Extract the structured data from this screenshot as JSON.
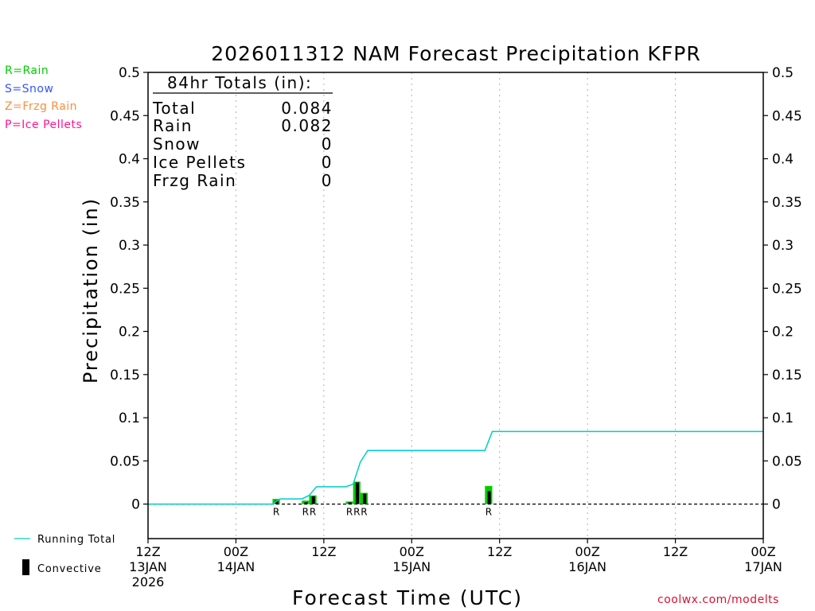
{
  "chart_data": {
    "type": "bar",
    "title": "2026011312 NAM Forecast Precipitation KFPR",
    "xlabel": "Forecast Time (UTC)",
    "ylabel": "Precipitation (in)",
    "ylim": [
      -0.04,
      0.5
    ],
    "xlim_hours": [
      0,
      84
    ],
    "yticks": [
      "0",
      "0.05",
      "0.1",
      "0.15",
      "0.2",
      "0.25",
      "0.3",
      "0.35",
      "0.4",
      "0.45",
      "0.5"
    ],
    "ytick_values": [
      0,
      0.05,
      0.1,
      0.15,
      0.2,
      0.25,
      0.3,
      0.35,
      0.4,
      0.45,
      0.5
    ],
    "xticks": [
      {
        "hour": 0,
        "line1": "12Z",
        "line2": "13JAN",
        "line3": "2026"
      },
      {
        "hour": 12,
        "line1": "00Z",
        "line2": "14JAN",
        "line3": ""
      },
      {
        "hour": 24,
        "line1": "12Z",
        "line2": "",
        "line3": ""
      },
      {
        "hour": 36,
        "line1": "00Z",
        "line2": "15JAN",
        "line3": ""
      },
      {
        "hour": 48,
        "line1": "12Z",
        "line2": "",
        "line3": ""
      },
      {
        "hour": 60,
        "line1": "00Z",
        "line2": "16JAN",
        "line3": ""
      },
      {
        "hour": 72,
        "line1": "12Z",
        "line2": "",
        "line3": ""
      },
      {
        "hour": 84,
        "line1": "00Z",
        "line2": "17JAN",
        "line3": ""
      }
    ],
    "grid_vertical_hours": [
      12,
      24,
      36,
      48,
      60,
      72
    ],
    "bars": [
      {
        "hour": 18,
        "total": 0.006,
        "convective": 0.004,
        "ptype": "R"
      },
      {
        "hour": 22,
        "total": 0.004,
        "convective": 0.002,
        "ptype": "R"
      },
      {
        "hour": 23,
        "total": 0.01,
        "convective": 0.009,
        "ptype": "R"
      },
      {
        "hour": 28,
        "total": 0.003,
        "convective": 0.002,
        "ptype": "R"
      },
      {
        "hour": 29,
        "total": 0.026,
        "convective": 0.025,
        "ptype": "R"
      },
      {
        "hour": 30,
        "total": 0.013,
        "convective": 0.012,
        "ptype": "R"
      },
      {
        "hour": 47,
        "total": 0.021,
        "convective": 0.015,
        "ptype": "R"
      }
    ],
    "running_total": {
      "hours": [
        0,
        17,
        18,
        21,
        22,
        23,
        26,
        27,
        28,
        29,
        30,
        45,
        46,
        47,
        84
      ],
      "values": [
        0,
        0,
        0.006,
        0.006,
        0.01,
        0.02,
        0.02,
        0.02,
        0.023,
        0.049,
        0.062,
        0.062,
        0.062,
        0.084,
        0.084
      ]
    },
    "colors": {
      "rain": "#00cc00",
      "snow": "#3355ff",
      "frzg_rain": "#ff8c3a",
      "ice_pellets": "#ff1493",
      "running_total": "#00cccc",
      "convective": "#000000",
      "grid": "#b0b0b0"
    }
  },
  "totals_box": {
    "header": "84hr Totals (in):",
    "rows": [
      {
        "label": "Total",
        "value": "0.084"
      },
      {
        "label": "Rain",
        "value": "0.082"
      },
      {
        "label": "Snow",
        "value": "0"
      },
      {
        "label": "Ice Pellets",
        "value": "0"
      },
      {
        "label": "Frzg Rain",
        "value": "0"
      }
    ]
  },
  "ptype_legend": [
    {
      "text": "R=Rain",
      "color": "#00cc00"
    },
    {
      "text": "S=Snow",
      "color": "#3355ff"
    },
    {
      "text": "Z=Frzg Rain",
      "color": "#ff8c3a"
    },
    {
      "text": "P=Ice Pellets",
      "color": "#ff1493"
    }
  ],
  "series_legend": {
    "running_total": "Running Total",
    "convective": "Convective"
  },
  "credit": "coolwx.com/modelts"
}
